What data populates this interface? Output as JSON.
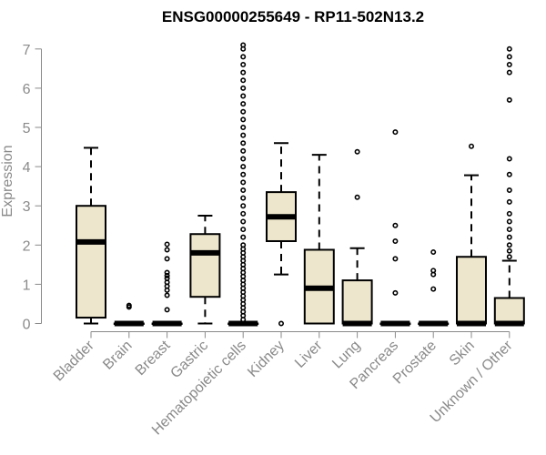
{
  "chart_data": {
    "type": "boxplot",
    "title": "ENSG00000255649 - RP11-502N13.2",
    "xlabel": "",
    "ylabel": "Expression",
    "ylim": [
      0,
      7.1
    ],
    "yticks": [
      0,
      1,
      2,
      3,
      4,
      5,
      6,
      7
    ],
    "box_fill": "#ede6cc",
    "box_stroke": "#000000",
    "categories": [
      "Bladder",
      "Brain",
      "Breast",
      "Gastric",
      "Hematopoietic cells",
      "Kidney",
      "Liver",
      "Lung",
      "Pancreas",
      "Prostate",
      "Skin",
      "Unknown / Other"
    ],
    "boxes": [
      {
        "name": "Bladder",
        "min": 0.0,
        "q1": 0.15,
        "median": 2.08,
        "q3": 3.0,
        "max": 4.48,
        "outliers": []
      },
      {
        "name": "Brain",
        "min": 0.0,
        "q1": 0.0,
        "median": 0.0,
        "q3": 0.0,
        "max": 0.0,
        "outliers": [
          0.42,
          0.46
        ]
      },
      {
        "name": "Breast",
        "min": 0.0,
        "q1": 0.0,
        "median": 0.0,
        "q3": 0.0,
        "max": 0.0,
        "outliers": [
          0.35,
          0.72,
          0.85,
          0.95,
          1.05,
          1.15,
          1.22,
          1.3,
          1.65,
          1.88,
          2.02
        ]
      },
      {
        "name": "Gastric",
        "min": 0.0,
        "q1": 0.68,
        "median": 1.8,
        "q3": 2.28,
        "max": 2.75,
        "outliers": []
      },
      {
        "name": "Hematopoietic cells",
        "min": 0.0,
        "q1": 0.0,
        "median": 0.0,
        "q3": 0.0,
        "max": 0.0,
        "outliers": [
          0.1,
          0.2,
          0.3,
          0.4,
          0.5,
          0.6,
          0.7,
          0.8,
          0.9,
          1.0,
          1.1,
          1.2,
          1.3,
          1.4,
          1.5,
          1.6,
          1.7,
          1.8,
          1.9,
          2.0,
          2.2,
          2.4,
          2.6,
          2.8,
          3.0,
          3.2,
          3.4,
          3.6,
          3.8,
          4.0,
          4.2,
          4.4,
          4.6,
          4.8,
          5.0,
          5.2,
          5.4,
          5.6,
          5.8,
          6.0,
          6.2,
          6.4,
          6.6,
          6.8,
          7.0,
          7.1
        ]
      },
      {
        "name": "Kidney",
        "min": 1.25,
        "q1": 2.1,
        "median": 2.72,
        "q3": 3.35,
        "max": 4.6,
        "outliers": [
          0.0
        ]
      },
      {
        "name": "Liver",
        "min": 0.0,
        "q1": 0.0,
        "median": 0.9,
        "q3": 1.88,
        "max": 4.3,
        "outliers": []
      },
      {
        "name": "Lung",
        "min": 0.0,
        "q1": 0.0,
        "median": 0.0,
        "q3": 1.1,
        "max": 1.92,
        "outliers": [
          3.22,
          4.38
        ]
      },
      {
        "name": "Pancreas",
        "min": 0.0,
        "q1": 0.0,
        "median": 0.0,
        "q3": 0.0,
        "max": 0.0,
        "outliers": [
          0.78,
          1.65,
          2.1,
          2.5,
          4.88
        ]
      },
      {
        "name": "Prostate",
        "min": 0.0,
        "q1": 0.0,
        "median": 0.0,
        "q3": 0.0,
        "max": 0.0,
        "outliers": [
          0.88,
          1.25,
          1.35,
          1.82
        ]
      },
      {
        "name": "Skin",
        "min": 0.0,
        "q1": 0.0,
        "median": 0.0,
        "q3": 1.7,
        "max": 3.78,
        "outliers": [
          4.52
        ]
      },
      {
        "name": "Unknown / Other",
        "min": 0.0,
        "q1": 0.0,
        "median": 0.0,
        "q3": 0.65,
        "max": 1.6,
        "outliers": [
          1.7,
          1.85,
          2.0,
          2.2,
          2.4,
          2.6,
          2.8,
          3.1,
          3.4,
          3.8,
          4.2,
          5.7,
          6.4,
          6.6,
          6.8,
          7.0
        ]
      }
    ]
  }
}
